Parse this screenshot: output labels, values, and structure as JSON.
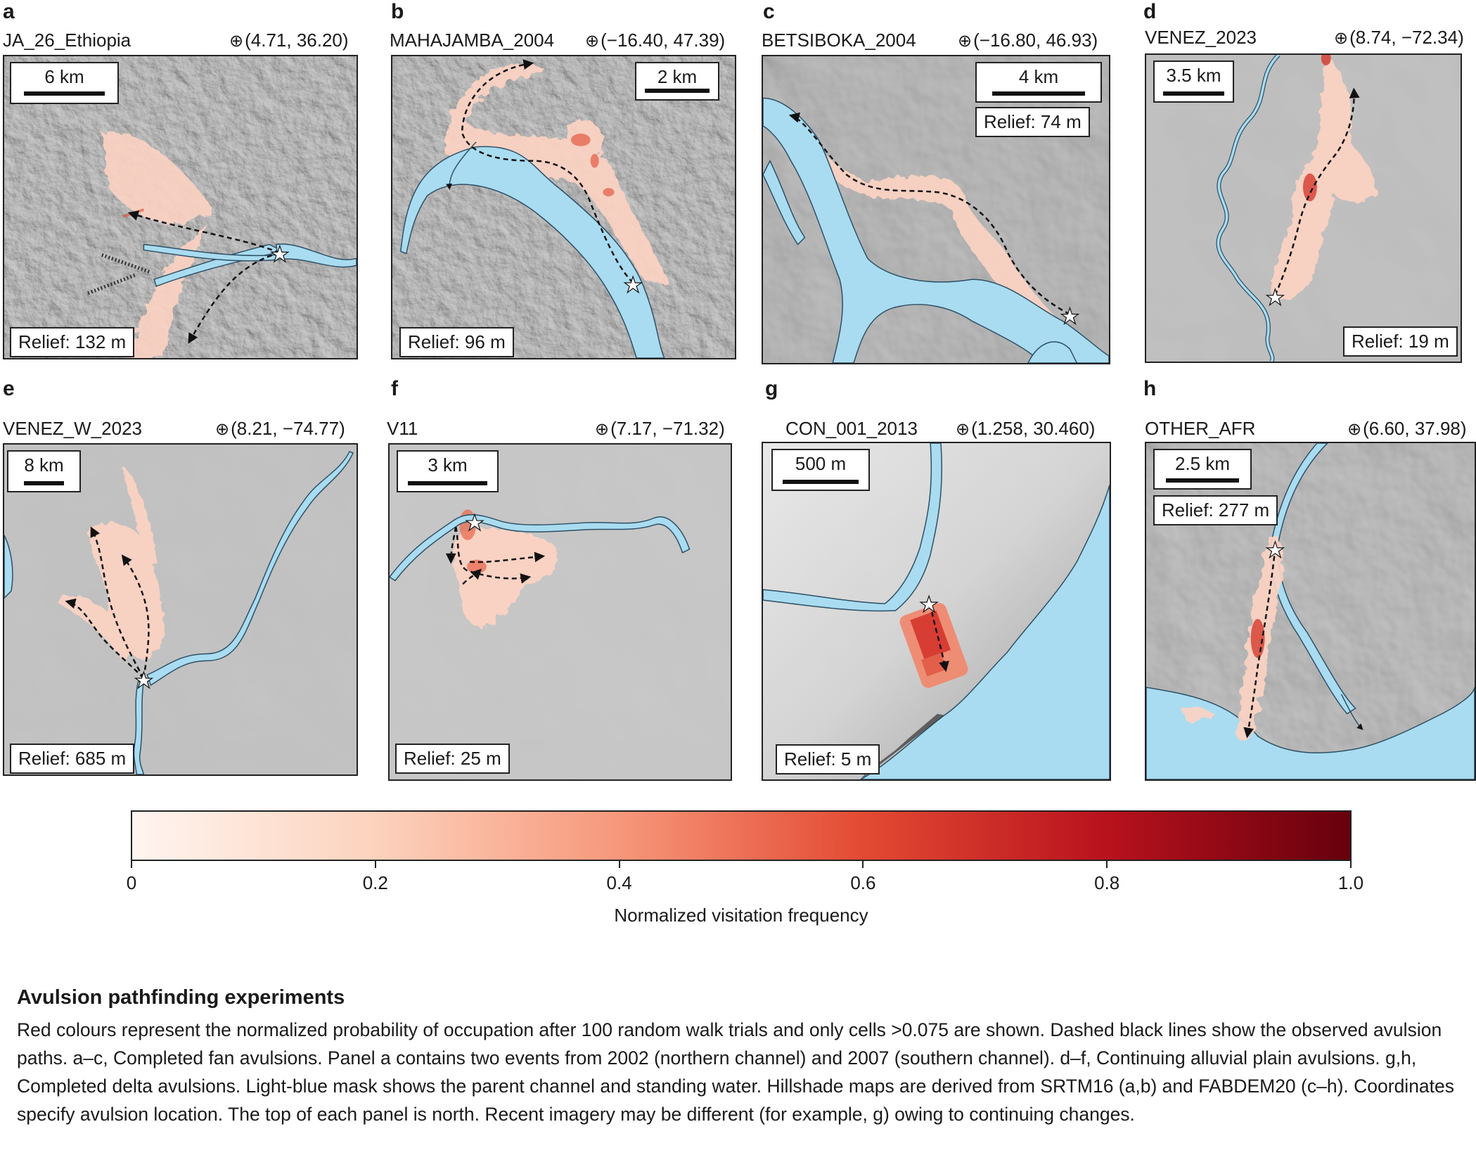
{
  "panels": [
    {
      "letter": "a",
      "name": "JA_26_Ethiopia",
      "coords": "(4.71, 36.20)",
      "scale": "6 km",
      "relief": "Relief: 132 m"
    },
    {
      "letter": "b",
      "name": "MAHAJAMBA_2004",
      "coords": "(−16.40, 47.39)",
      "scale": "2 km",
      "relief": "Relief: 96 m"
    },
    {
      "letter": "c",
      "name": "BETSIBOKA_2004",
      "coords": "(−16.80, 46.93)",
      "scale": "4 km",
      "relief": "Relief: 74 m"
    },
    {
      "letter": "d",
      "name": "VENEZ_2023",
      "coords": "(8.74, −72.34)",
      "scale": "3.5 km",
      "relief": "Relief: 19 m"
    },
    {
      "letter": "e",
      "name": "VENEZ_W_2023",
      "coords": "(8.21, −74.77)",
      "scale": "8 km",
      "relief": "Relief: 685 m"
    },
    {
      "letter": "f",
      "name": "V11",
      "coords": "(7.17, −71.32)",
      "scale": "3 km",
      "relief": "Relief: 25 m"
    },
    {
      "letter": "g",
      "name": "CON_001_2013",
      "coords": "(1.258, 30.460)",
      "scale": "500 m",
      "relief": "Relief: 5 m"
    },
    {
      "letter": "h",
      "name": "OTHER_AFR",
      "coords": "(6.60, 37.98)",
      "scale": "2.5 km",
      "relief": "Relief: 277 m"
    }
  ],
  "colorbar": {
    "label": "Normalized visitation frequency",
    "ticks": [
      "0",
      "0.2",
      "0.4",
      "0.6",
      "0.8",
      "1.0"
    ],
    "tick_values": [
      0,
      0.2,
      0.4,
      0.6,
      0.8,
      1.0
    ],
    "colormap": "Reds",
    "range": [
      0,
      1.0
    ]
  },
  "colors": {
    "water": "#a9dcf0",
    "hillshade": "#9a9a9a",
    "visitation_low": "#fde8df",
    "visitation_high": "#6b0a12"
  },
  "caption": {
    "title": "Avulsion pathfinding experiments",
    "text": "Red colours represent the normalized probability of occupation after 100 random walk trials and only cells >0.075 are shown. Dashed black lines show the observed avulsion paths. a–c, Completed fan avulsions. Panel a contains two events from 2002 (northern channel) and 2007 (southern channel). d–f, Continuing alluvial plain avulsions. g,h, Completed delta avulsions. Light-blue mask shows the parent channel and standing water. Hillshade maps are derived from SRTM16 (a,b) and FABDEM20 (c–h). Coordinates specify avulsion location. The top of each panel is north. Recent imagery may be different (for example, g) owing to continuing changes."
  }
}
